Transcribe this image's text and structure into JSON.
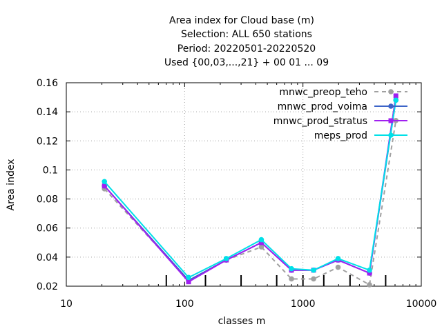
{
  "title_lines": [
    "Area index  for Cloud base (m)",
    "Selection: ALL    650 stations",
    "Period: 20220501-20220520",
    "Used {00,03,...,21} + 00 01 ... 09"
  ],
  "chart_data": {
    "type": "line",
    "xlabel": "classes m",
    "ylabel": "Area index",
    "xscale": "log",
    "xlim": [
      10,
      10000
    ],
    "ylim": [
      0.02,
      0.16
    ],
    "xticks": [
      10,
      100,
      1000,
      10000
    ],
    "xtick_labels": [
      "10",
      "100",
      "1000",
      "10000"
    ],
    "yticks": [
      0.02,
      0.04,
      0.06,
      0.08,
      0.1,
      0.12,
      0.14,
      0.16
    ],
    "ytick_labels": [
      "0.02",
      "0.04",
      "0.06",
      "0.08",
      "0.1",
      "0.12",
      "0.14",
      "0.16"
    ],
    "grid": true,
    "legend_position": "top-right",
    "class_boundaries": [
      70,
      150,
      300,
      600,
      1000,
      1500,
      2500,
      5000
    ],
    "series": [
      {
        "name": "mnwc_preop_teho",
        "color": "#a0a0a0",
        "dashed": true,
        "marker": "circle",
        "x": [
          21,
          108,
          225,
          445,
          800,
          1230,
          1980,
          3650,
          6100
        ],
        "y": [
          0.087,
          0.024,
          0.038,
          0.047,
          0.025,
          0.025,
          0.033,
          0.021,
          0.134
        ]
      },
      {
        "name": "mnwc_prod_voima",
        "color": "#3c64c8",
        "dashed": false,
        "marker": "circle",
        "x": [
          21,
          108,
          225,
          445,
          800,
          1230,
          1980,
          3650,
          6100
        ],
        "y": [
          0.089,
          0.024,
          0.038,
          0.05,
          0.031,
          0.031,
          0.038,
          0.029,
          0.148
        ]
      },
      {
        "name": "mnwc_prod_stratus",
        "color": "#a020f0",
        "dashed": false,
        "marker": "square",
        "x": [
          21,
          108,
          225,
          445,
          800,
          1230,
          1980,
          3650,
          6100
        ],
        "y": [
          0.089,
          0.023,
          0.038,
          0.05,
          0.031,
          0.031,
          0.038,
          0.029,
          0.151
        ]
      },
      {
        "name": "meps_prod",
        "color": "#00e0e8",
        "dashed": false,
        "marker": "circle",
        "x": [
          21,
          108,
          225,
          445,
          800,
          1230,
          1980,
          3650,
          6100
        ],
        "y": [
          0.092,
          0.026,
          0.039,
          0.052,
          0.032,
          0.031,
          0.039,
          0.031,
          0.148
        ]
      }
    ]
  }
}
